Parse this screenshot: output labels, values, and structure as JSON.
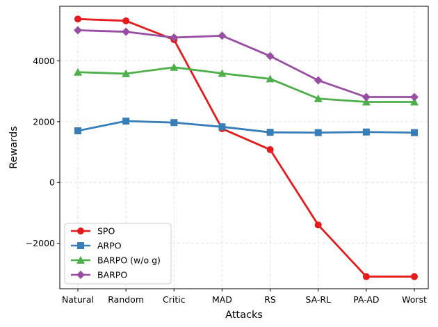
{
  "chart_data": {
    "type": "line",
    "title": "",
    "xlabel": "Attacks",
    "ylabel": "Rewards",
    "categories": [
      "Natural",
      "Random",
      "Critic",
      "MAD",
      "RS",
      "SA-RL",
      "PA-AD",
      "Worst"
    ],
    "ylim": [
      -3500,
      5800
    ],
    "yticks": [
      -2000,
      0,
      2000,
      4000
    ],
    "ytick_labels": [
      "−2000",
      "0",
      "2000",
      "4000"
    ],
    "grid": true,
    "legend_position": "lower-left",
    "series": [
      {
        "name": "SPO",
        "color": "#e41a1c",
        "marker": "circle",
        "values": [
          5380,
          5320,
          4700,
          1770,
          1080,
          -1400,
          -3100,
          -3100
        ]
      },
      {
        "name": "ARPO",
        "color": "#377eb8",
        "marker": "square",
        "values": [
          1700,
          2020,
          1970,
          1830,
          1650,
          1640,
          1660,
          1640
        ]
      },
      {
        "name": "BARPO (w/o g)",
        "color": "#4daf4a",
        "marker": "triangle",
        "values": [
          3630,
          3580,
          3790,
          3590,
          3410,
          2760,
          2650,
          2650
        ]
      },
      {
        "name": "BARPO",
        "color": "#984ea3",
        "marker": "diamond",
        "values": [
          5010,
          4960,
          4770,
          4830,
          4160,
          3360,
          2810,
          2810
        ]
      }
    ]
  }
}
